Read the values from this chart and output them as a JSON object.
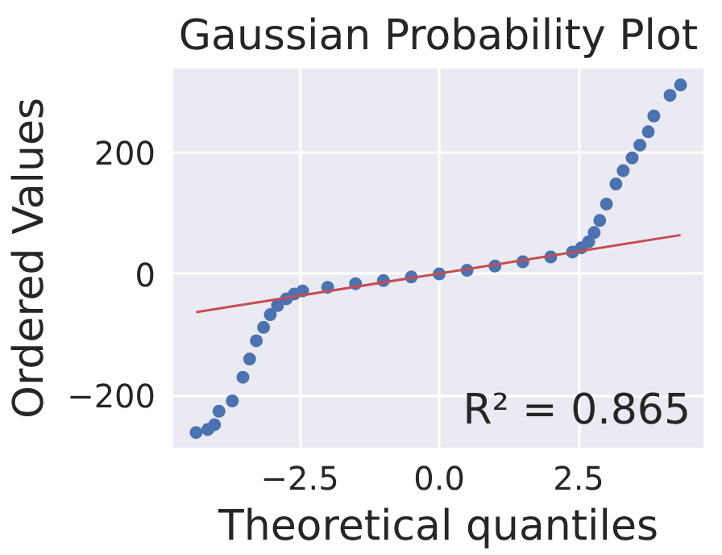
{
  "chart_data": {
    "type": "scatter",
    "title": "Gaussian Probability Plot",
    "xlabel": "Theoretical quantiles",
    "ylabel": "Ordered Values",
    "xlim": [
      -4.77,
      4.74
    ],
    "ylim": [
      -286,
      338
    ],
    "xticks": [
      {
        "value": -2.5,
        "label": "−2.5"
      },
      {
        "value": 0,
        "label": "0.0"
      },
      {
        "value": 2.5,
        "label": "2.5"
      }
    ],
    "yticks": [
      {
        "value": -200,
        "label": "−200"
      },
      0,
      200
    ],
    "grid": true,
    "annotations": [
      "R² = 0.865"
    ],
    "series": [
      {
        "marker": "circle",
        "color": "#4c72b0",
        "x": [
          -4.36,
          -4.15,
          -4.03,
          -3.95,
          -3.71,
          -3.52,
          -3.4,
          -3.28,
          -3.15,
          -3.03,
          -2.9,
          -2.74,
          -2.6,
          -2.45,
          -2.0,
          -1.5,
          -1.0,
          -0.5,
          0.0,
          0.5,
          1.0,
          1.5,
          2.0,
          2.39,
          2.55,
          2.68,
          2.78,
          2.88,
          3.0,
          3.17,
          3.3,
          3.46,
          3.6,
          3.75,
          3.85,
          4.14,
          4.33
        ],
        "values": [
          -261,
          -256,
          -248,
          -226,
          -209,
          -170,
          -140,
          -110,
          -88,
          -67,
          -52,
          -41,
          -33,
          -28,
          -22,
          -16,
          -11,
          -5,
          0,
          6,
          13,
          20,
          28,
          36,
          43,
          53,
          68,
          88,
          115,
          148,
          170,
          191,
          212,
          234,
          260,
          294,
          311
        ]
      },
      {
        "type": "line",
        "color": "#c44e52",
        "x": [
          -4.36,
          4.33
        ],
        "values": [
          -63,
          64
        ]
      }
    ]
  }
}
